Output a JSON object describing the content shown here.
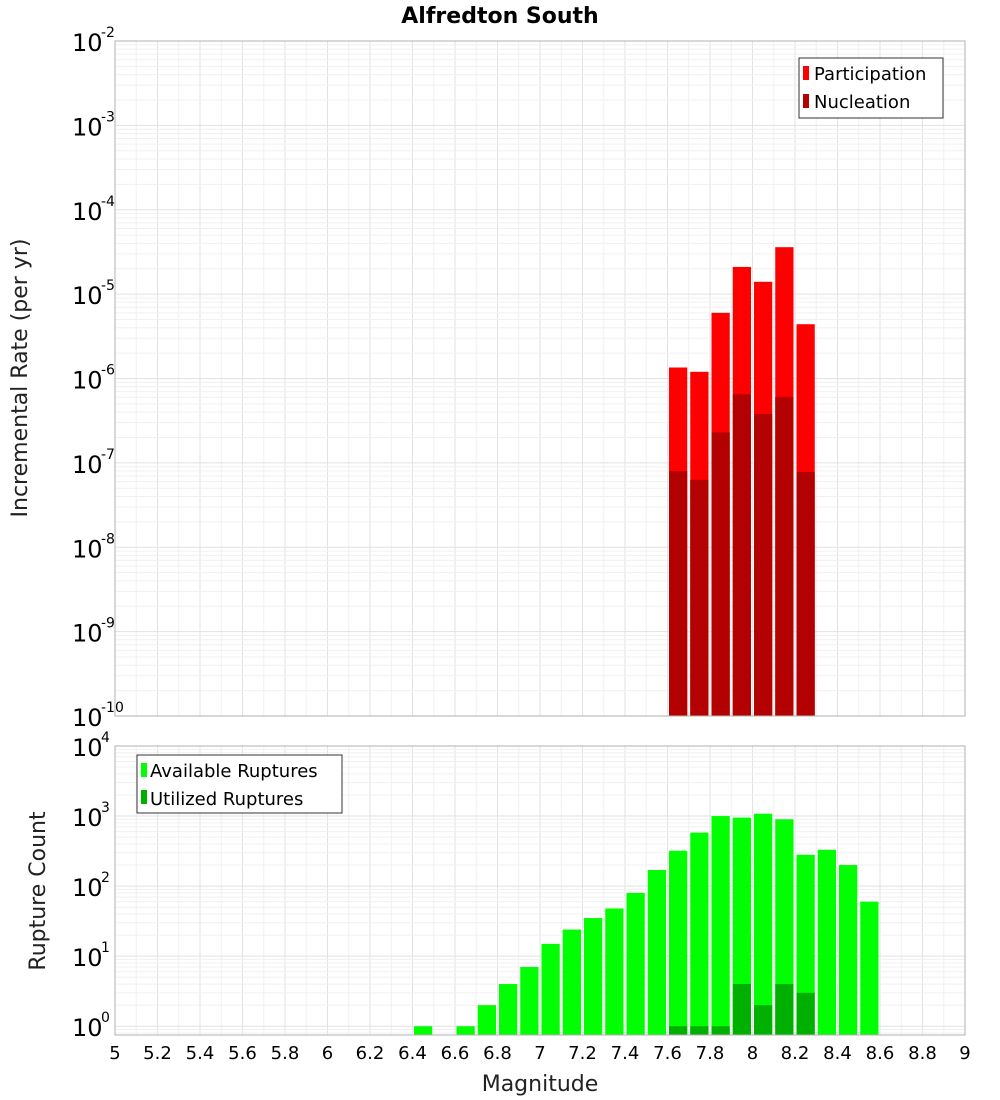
{
  "chart_data": [
    {
      "type": "bar",
      "title": "Alfredton South",
      "xlabel": "",
      "ylabel": "Incremental Rate (per yr)",
      "yscale": "log",
      "ylim": [
        1e-10,
        0.01
      ],
      "xlim": [
        5,
        9
      ],
      "legend_position": "top-right",
      "legend": [
        "Participation",
        "Nucleation"
      ],
      "colors": {
        "Participation": "#ff0000",
        "Nucleation": "#b30000"
      },
      "x": [
        7.65,
        7.75,
        7.85,
        7.95,
        8.05,
        8.15,
        8.25
      ],
      "series": [
        {
          "name": "Participation",
          "values": [
            1.35e-06,
            1.2e-06,
            6e-06,
            2.1e-05,
            1.4e-05,
            3.6e-05,
            4.4e-06
          ]
        },
        {
          "name": "Nucleation",
          "values": [
            8e-08,
            6.3e-08,
            2.3e-07,
            6.5e-07,
            3.8e-07,
            6e-07,
            7.8e-08
          ]
        }
      ],
      "y_tick_exponents": [
        -10,
        -9,
        -8,
        -7,
        -6,
        -5,
        -4,
        -3,
        -2
      ]
    },
    {
      "type": "bar",
      "title": "",
      "xlabel": "Magnitude",
      "ylabel": "Rupture Count",
      "yscale": "log",
      "ylim": [
        0.75,
        10000
      ],
      "xlim": [
        5,
        9
      ],
      "legend_position": "top-left",
      "legend": [
        "Available Ruptures",
        "Utilized Ruptures"
      ],
      "colors": {
        "Available Ruptures": "#00ff00",
        "Utilized Ruptures": "#00b000"
      },
      "x": [
        6.45,
        6.65,
        6.75,
        6.85,
        6.95,
        7.05,
        7.15,
        7.25,
        7.35,
        7.45,
        7.55,
        7.65,
        7.75,
        7.85,
        7.95,
        8.05,
        8.15,
        8.25,
        8.35,
        8.45,
        8.55
      ],
      "series": [
        {
          "name": "Available Ruptures",
          "values": [
            1,
            1,
            2,
            4,
            7,
            15,
            24,
            35,
            48,
            80,
            170,
            320,
            580,
            1000,
            950,
            1080,
            900,
            280,
            330,
            200,
            60
          ]
        },
        {
          "name": "Utilized Ruptures",
          "values": [
            0,
            0,
            0,
            0,
            0,
            0,
            0,
            0,
            0,
            0,
            0,
            1,
            1,
            1,
            4,
            2,
            4,
            3,
            0,
            0,
            0
          ]
        }
      ],
      "y_tick_exponents": [
        0,
        1,
        2,
        3,
        4
      ],
      "x_ticks": [
        "5",
        "5.2",
        "5.4",
        "5.6",
        "5.8",
        "6",
        "6.2",
        "6.4",
        "6.6",
        "6.8",
        "7",
        "7.2",
        "7.4",
        "7.6",
        "7.8",
        "8",
        "8.2",
        "8.4",
        "8.6",
        "8.8",
        "9"
      ]
    }
  ]
}
